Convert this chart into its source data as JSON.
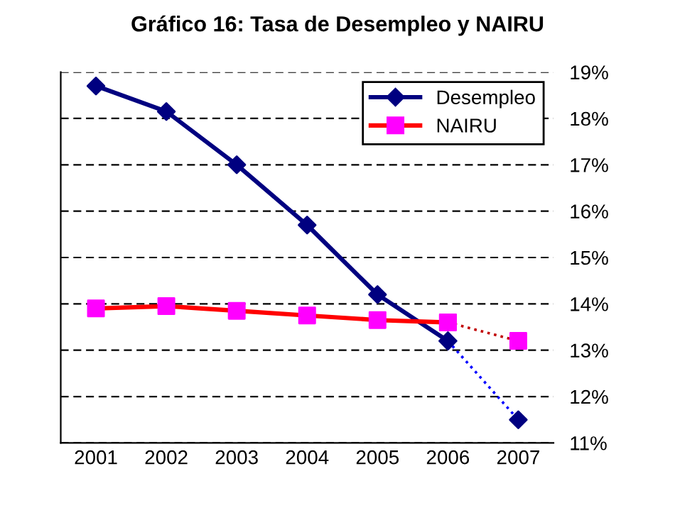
{
  "chart_data": {
    "type": "line",
    "title": "Gráfico 16: Tasa de Desempleo y NAIRU",
    "categories": [
      "2001",
      "2002",
      "2003",
      "2004",
      "2005",
      "2006",
      "2007"
    ],
    "series": [
      {
        "name": "Desempleo",
        "color": "#000080",
        "marker": "diamond",
        "line_style": "solid",
        "values": [
          18.7,
          18.15,
          17.0,
          15.7,
          14.2,
          13.2,
          null
        ]
      },
      {
        "name": "NAIRU",
        "color": "#ff0000",
        "colors": [
          "#ff00ff",
          "#ff00ff",
          "#ff00ff",
          "#ff00ff",
          "#ff00ff",
          "#ff00ff",
          null
        ],
        "marker": "square",
        "line_style": "solid",
        "values": [
          13.9,
          13.95,
          13.85,
          13.75,
          13.65,
          13.6,
          null
        ]
      },
      {
        "color": "#0000ff",
        "colors": [
          null,
          null,
          null,
          null,
          null,
          "#000080",
          "#000080"
        ],
        "marker": "diamond",
        "line_style": "dotted",
        "values": [
          null,
          null,
          null,
          null,
          null,
          13.2,
          11.5
        ]
      },
      {
        "color": "#c00000",
        "colors": [
          null,
          null,
          null,
          null,
          null,
          "#ff00ff",
          "#ff00ff"
        ],
        "marker": "square",
        "line_style": "dotted",
        "values": [
          null,
          null,
          null,
          null,
          null,
          13.6,
          13.2
        ]
      }
    ],
    "ylim": [
      11,
      19
    ],
    "yticks": [
      {
        "value": 11,
        "label": "11%"
      },
      {
        "value": 12,
        "label": "12%"
      },
      {
        "value": 13,
        "label": "13%"
      },
      {
        "value": 14,
        "label": "14%"
      },
      {
        "value": 15,
        "label": "15%"
      },
      {
        "value": 16,
        "label": "16%"
      },
      {
        "value": 17,
        "label": "17%"
      },
      {
        "value": 18,
        "label": "18%"
      },
      {
        "value": 19,
        "label": "19%"
      }
    ],
    "grid": "y",
    "legend": "top right"
  }
}
